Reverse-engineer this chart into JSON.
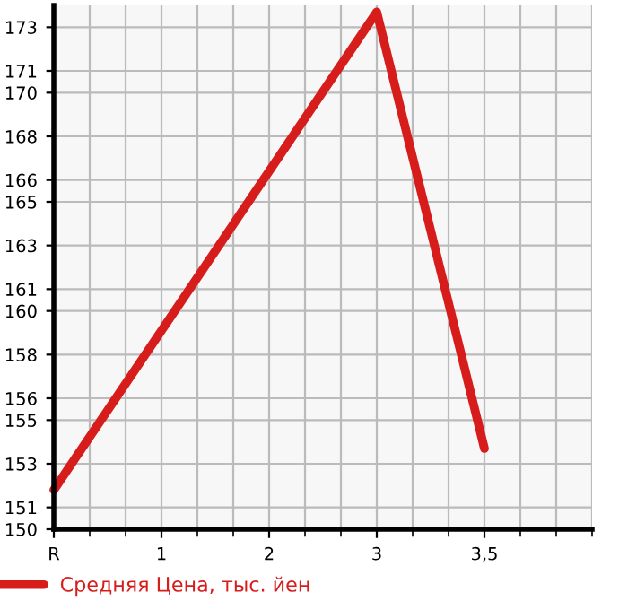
{
  "chart_data": {
    "type": "line",
    "categories": [
      "R",
      "1",
      "2",
      "3",
      "3,5"
    ],
    "series": [
      {
        "name": "Средняя Цена, тыс. йен",
        "color": "#d71c1c",
        "values": [
          151.8,
          null,
          null,
          173.7,
          153.7
        ]
      }
    ],
    "ylim": [
      150,
      174
    ],
    "yticks": [
      150,
      151,
      153,
      155,
      156,
      158,
      160,
      161,
      163,
      165,
      166,
      168,
      170,
      171,
      173
    ],
    "grid": true,
    "legend": "bottom",
    "marker": "none",
    "line_style": "solid"
  }
}
